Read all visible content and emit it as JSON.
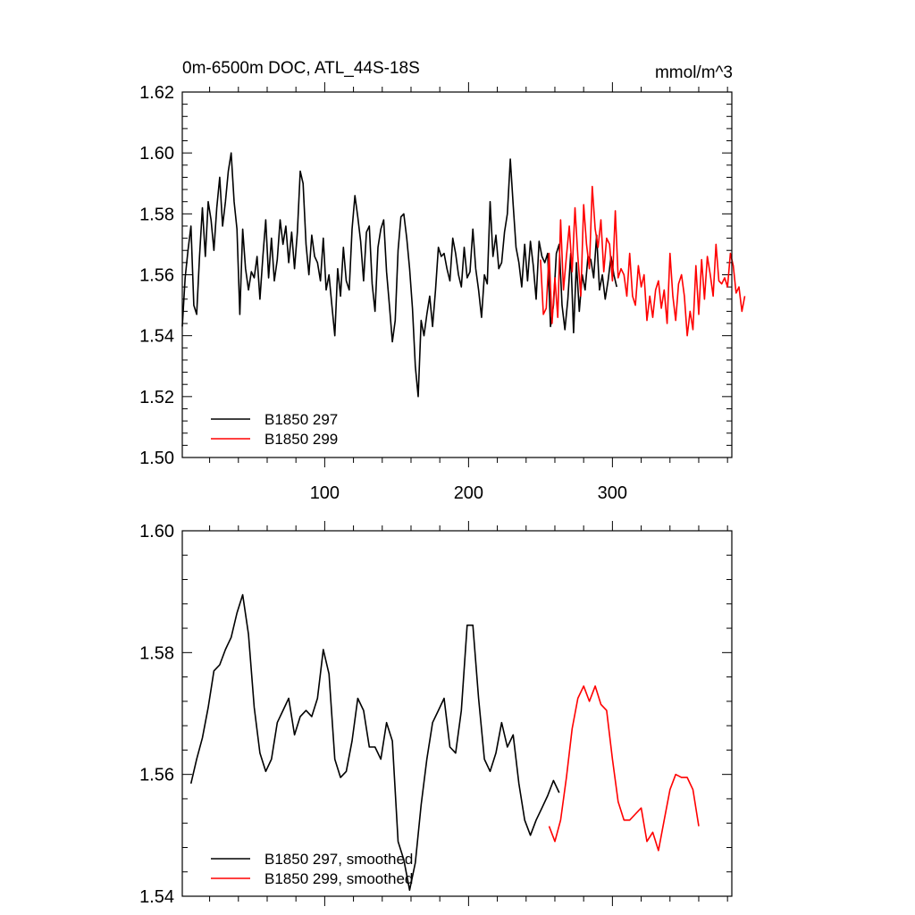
{
  "colors": {
    "series_1": "#000000",
    "series_2": "#ff0000",
    "axis": "#000000",
    "background": "#ffffff"
  },
  "chart_data": [
    {
      "type": "line",
      "title": "0m-6500m DOC, ATL_44S-18S",
      "units_label": "mmol/m^3",
      "xlim": [
        1,
        383
      ],
      "ylim": [
        1.5,
        1.62
      ],
      "xticks": [
        100,
        200,
        300
      ],
      "xtick_labels": [
        "100",
        "200",
        "300"
      ],
      "yticks": [
        1.5,
        1.52,
        1.54,
        1.56,
        1.58,
        1.6,
        1.62
      ],
      "ytick_labels": [
        "1.50",
        "1.52",
        "1.54",
        "1.56",
        "1.58",
        "1.60",
        "1.62"
      ],
      "legend_position": "bottom-left",
      "grid": false,
      "series": [
        {
          "name": "B1850 297",
          "color": "#000000",
          "x_start": 1,
          "x_step": 2,
          "values": [
            1.543,
            1.559,
            1.568,
            1.576,
            1.55,
            1.547,
            1.566,
            1.582,
            1.566,
            1.584,
            1.578,
            1.568,
            1.582,
            1.592,
            1.576,
            1.584,
            1.594,
            1.6,
            1.584,
            1.575,
            1.547,
            1.575,
            1.562,
            1.555,
            1.561,
            1.559,
            1.566,
            1.552,
            1.566,
            1.578,
            1.559,
            1.572,
            1.558,
            1.565,
            1.578,
            1.57,
            1.576,
            1.564,
            1.574,
            1.562,
            1.574,
            1.594,
            1.59,
            1.57,
            1.56,
            1.573,
            1.566,
            1.564,
            1.558,
            1.572,
            1.555,
            1.56,
            1.55,
            1.54,
            1.562,
            1.553,
            1.569,
            1.558,
            1.555,
            1.575,
            1.586,
            1.579,
            1.571,
            1.558,
            1.574,
            1.576,
            1.557,
            1.548,
            1.569,
            1.575,
            1.578,
            1.561,
            1.55,
            1.538,
            1.545,
            1.568,
            1.579,
            1.58,
            1.572,
            1.562,
            1.549,
            1.53,
            1.52,
            1.545,
            1.54,
            1.547,
            1.553,
            1.543,
            1.555,
            1.569,
            1.566,
            1.567,
            1.562,
            1.558,
            1.572,
            1.567,
            1.56,
            1.556,
            1.569,
            1.559,
            1.561,
            1.575,
            1.562,
            1.555,
            1.546,
            1.56,
            1.557,
            1.584,
            1.566,
            1.573,
            1.562,
            1.564,
            1.574,
            1.58,
            1.598,
            1.583,
            1.569,
            1.564,
            1.556,
            1.57,
            1.558,
            1.571,
            1.563,
            1.552,
            1.571,
            1.566,
            1.564,
            1.567,
            1.543,
            1.55,
            1.567,
            1.57,
            1.55,
            1.542,
            1.552,
            1.567,
            1.541,
            1.564,
            1.548,
            1.56,
            1.555,
            1.566,
            1.565,
            1.559,
            1.573,
            1.555,
            1.56,
            1.552,
            1.558,
            1.566,
            1.56,
            1.556
          ]
        },
        {
          "name": "B1850 299",
          "color": "#ff0000",
          "x_start": 250,
          "x_step": 2,
          "values": [
            1.565,
            1.547,
            1.549,
            1.567,
            1.544,
            1.559,
            1.546,
            1.578,
            1.555,
            1.566,
            1.576,
            1.561,
            1.582,
            1.566,
            1.553,
            1.583,
            1.57,
            1.562,
            1.589,
            1.575,
            1.569,
            1.578,
            1.561,
            1.572,
            1.57,
            1.558,
            1.581,
            1.559,
            1.562,
            1.56,
            1.553,
            1.567,
            1.553,
            1.55,
            1.563,
            1.556,
            1.56,
            1.545,
            1.553,
            1.546,
            1.555,
            1.558,
            1.549,
            1.555,
            1.544,
            1.567,
            1.553,
            1.545,
            1.557,
            1.56,
            1.553,
            1.54,
            1.548,
            1.542,
            1.563,
            1.547,
            1.565,
            1.552,
            1.566,
            1.56,
            1.553,
            1.57,
            1.558,
            1.557,
            1.559,
            1.556,
            1.567,
            1.563,
            1.554,
            1.556,
            1.548,
            1.553
          ]
        }
      ]
    },
    {
      "type": "line",
      "xlim": [
        1,
        383
      ],
      "ylim": [
        1.54,
        1.6
      ],
      "xticks": [
        100,
        200,
        300
      ],
      "yticks": [
        1.54,
        1.56,
        1.58,
        1.6
      ],
      "ytick_labels": [
        "1.54",
        "1.56",
        "1.58",
        "1.60"
      ],
      "legend_position": "bottom-left",
      "grid": false,
      "series": [
        {
          "name": "B1850 297, smoothed",
          "color": "#000000",
          "x_start": 7,
          "x_step": 4,
          "values": [
            1.5585,
            1.5625,
            1.566,
            1.571,
            1.577,
            1.578,
            1.5805,
            1.5825,
            1.5865,
            1.5895,
            1.583,
            1.571,
            1.5635,
            1.5605,
            1.5625,
            1.5685,
            1.5705,
            1.5725,
            1.5665,
            1.5695,
            1.5705,
            1.5695,
            1.5725,
            1.5805,
            1.5765,
            1.5625,
            1.5595,
            1.5605,
            1.5655,
            1.5725,
            1.5705,
            1.5645,
            1.5645,
            1.5625,
            1.5685,
            1.5655,
            1.549,
            1.546,
            1.541,
            1.5455,
            1.555,
            1.5625,
            1.5685,
            1.5705,
            1.5725,
            1.5645,
            1.5635,
            1.5705,
            1.5845,
            1.5845,
            1.5725,
            1.5625,
            1.5605,
            1.5635,
            1.5685,
            1.5645,
            1.5665,
            1.5585,
            1.5525,
            1.55,
            1.5525,
            1.5545,
            1.5565,
            1.559,
            1.557
          ]
        },
        {
          "name": "B1850 299, smoothed",
          "color": "#ff0000",
          "x_start": 256,
          "x_step": 4,
          "values": [
            1.5515,
            1.549,
            1.5525,
            1.5595,
            1.5675,
            1.5725,
            1.5745,
            1.572,
            1.5745,
            1.5715,
            1.5705,
            1.5625,
            1.5555,
            1.5525,
            1.5525,
            1.5535,
            1.5545,
            1.549,
            1.5505,
            1.5475,
            1.5525,
            1.5575,
            1.56,
            1.5595,
            1.5595,
            1.5575,
            1.5515
          ]
        }
      ]
    }
  ]
}
